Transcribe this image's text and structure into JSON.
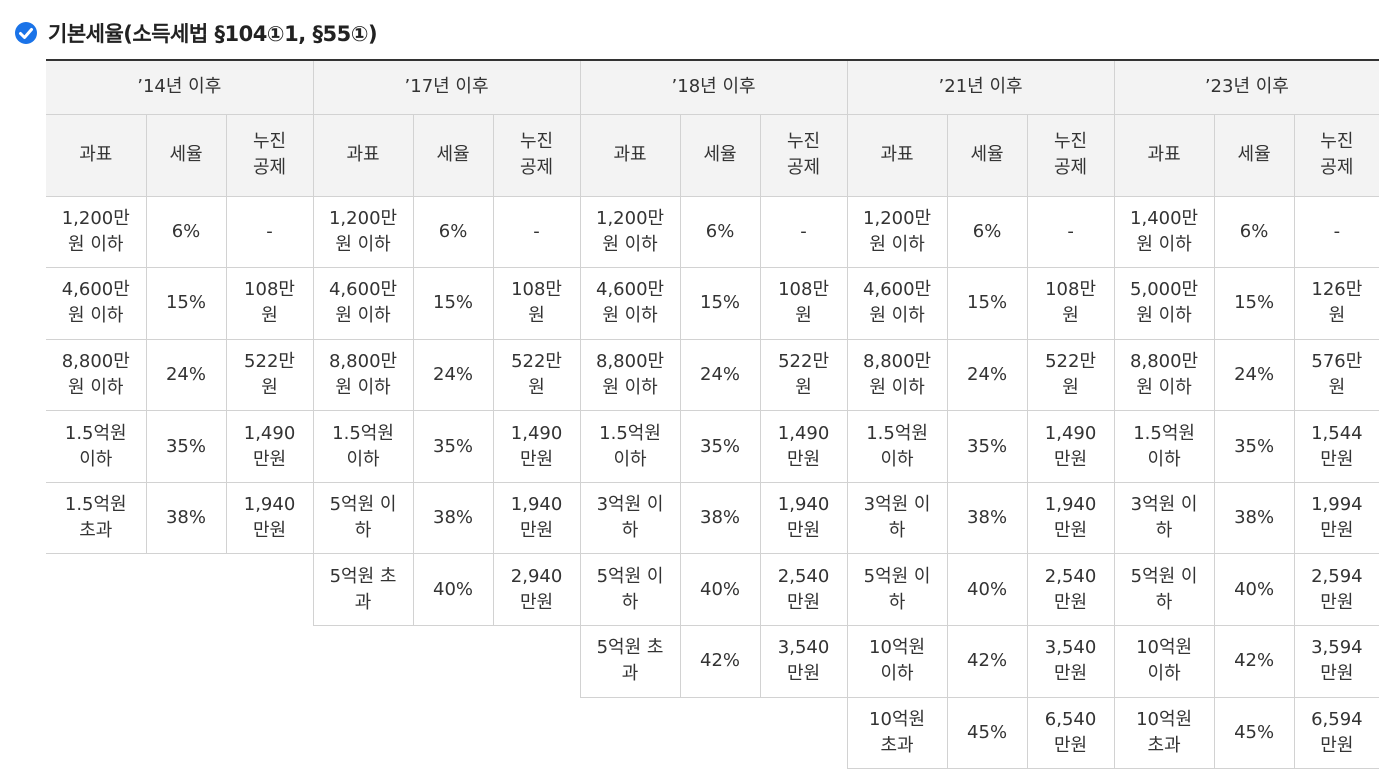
{
  "title": "기본세율(소득세법 §104①1, §55①)",
  "icon": "check-circle-icon",
  "accent_color": "#1a73e8",
  "periods": [
    "’14년 이후",
    "’17년 이후",
    "’18년 이후",
    "’21년 이후",
    "’23년 이후"
  ],
  "subheaders": {
    "base": "과표",
    "rate": "세율",
    "deduction": "누진\n공제"
  },
  "columns": [
    {
      "rows": [
        {
          "base": "1,200만\n원 이하",
          "rate": "6%",
          "deduction": "-"
        },
        {
          "base": "4,600만\n원 이하",
          "rate": "15%",
          "deduction": "108만\n원"
        },
        {
          "base": "8,800만\n원 이하",
          "rate": "24%",
          "deduction": "522만\n원"
        },
        {
          "base": "1.5억원\n이하",
          "rate": "35%",
          "deduction": "1,490\n만원"
        },
        {
          "base": "1.5억원\n초과",
          "rate": "38%",
          "deduction": "1,940\n만원"
        }
      ]
    },
    {
      "rows": [
        {
          "base": "1,200만\n원 이하",
          "rate": "6%",
          "deduction": "-"
        },
        {
          "base": "4,600만\n원 이하",
          "rate": "15%",
          "deduction": "108만\n원"
        },
        {
          "base": "8,800만\n원 이하",
          "rate": "24%",
          "deduction": "522만\n원"
        },
        {
          "base": "1.5억원\n이하",
          "rate": "35%",
          "deduction": "1,490\n만원"
        },
        {
          "base": "5억원 이\n하",
          "rate": "38%",
          "deduction": "1,940\n만원"
        },
        {
          "base": "5억원 초\n과",
          "rate": "40%",
          "deduction": "2,940\n만원"
        }
      ]
    },
    {
      "rows": [
        {
          "base": "1,200만\n원 이하",
          "rate": "6%",
          "deduction": "-"
        },
        {
          "base": "4,600만\n원 이하",
          "rate": "15%",
          "deduction": "108만\n원"
        },
        {
          "base": "8,800만\n원 이하",
          "rate": "24%",
          "deduction": "522만\n원"
        },
        {
          "base": "1.5억원\n이하",
          "rate": "35%",
          "deduction": "1,490\n만원"
        },
        {
          "base": "3억원 이\n하",
          "rate": "38%",
          "deduction": "1,940\n만원"
        },
        {
          "base": "5억원 이\n하",
          "rate": "40%",
          "deduction": "2,540\n만원"
        },
        {
          "base": "5억원 초\n과",
          "rate": "42%",
          "deduction": "3,540\n만원"
        }
      ]
    },
    {
      "rows": [
        {
          "base": "1,200만\n원 이하",
          "rate": "6%",
          "deduction": "-"
        },
        {
          "base": "4,600만\n원 이하",
          "rate": "15%",
          "deduction": "108만\n원"
        },
        {
          "base": "8,800만\n원 이하",
          "rate": "24%",
          "deduction": "522만\n원"
        },
        {
          "base": "1.5억원\n이하",
          "rate": "35%",
          "deduction": "1,490\n만원"
        },
        {
          "base": "3억원 이\n하",
          "rate": "38%",
          "deduction": "1,940\n만원"
        },
        {
          "base": "5억원 이\n하",
          "rate": "40%",
          "deduction": "2,540\n만원"
        },
        {
          "base": "10억원\n이하",
          "rate": "42%",
          "deduction": "3,540\n만원"
        },
        {
          "base": "10억원\n초과",
          "rate": "45%",
          "deduction": "6,540\n만원"
        }
      ]
    },
    {
      "rows": [
        {
          "base": "1,400만\n원 이하",
          "rate": "6%",
          "deduction": "-"
        },
        {
          "base": "5,000만\n원 이하",
          "rate": "15%",
          "deduction": "126만\n원"
        },
        {
          "base": "8,800만\n원 이하",
          "rate": "24%",
          "deduction": "576만\n원"
        },
        {
          "base": "1.5억원\n이하",
          "rate": "35%",
          "deduction": "1,544\n만원"
        },
        {
          "base": "3억원 이\n하",
          "rate": "38%",
          "deduction": "1,994\n만원"
        },
        {
          "base": "5억원 이\n하",
          "rate": "40%",
          "deduction": "2,594\n만원"
        },
        {
          "base": "10억원\n이하",
          "rate": "42%",
          "deduction": "3,594\n만원"
        },
        {
          "base": "10억원\n초과",
          "rate": "45%",
          "deduction": "6,594\n만원"
        }
      ]
    }
  ]
}
